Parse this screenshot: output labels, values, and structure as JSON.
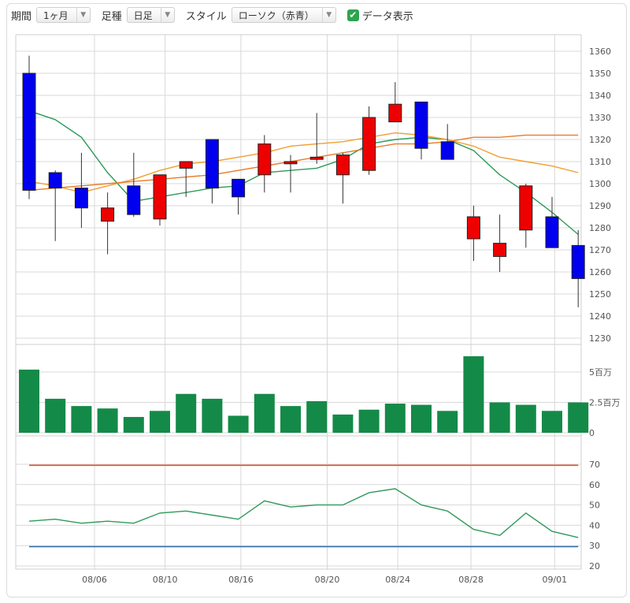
{
  "toolbar": {
    "period_label": "期間",
    "period_value": "1ヶ月",
    "foot_label": "足種",
    "foot_value": "日足",
    "style_label": "スタイル",
    "style_value": "ローソク（赤青）",
    "data_toggle_label": "データ表示",
    "data_toggle_checked": true
  },
  "colors": {
    "up": "#ee0000",
    "down": "#0000ee",
    "volume": "#148a48",
    "ma_short": "#2e9a5a",
    "ma_long": "#f0a030",
    "ma_mid": "#e87a2a",
    "rsi_line": "#2e9a5a",
    "rsi_upper": "#e8502a",
    "rsi_lower": "#2a6aa8",
    "grid": "#d8d8d8"
  },
  "chart_data": [
    {
      "type": "candlestick",
      "y_ticks": [
        "1360",
        "1350",
        "1340",
        "1330",
        "1320",
        "1310",
        "1300",
        "1290",
        "1280",
        "1270",
        "1260",
        "1250",
        "1240",
        "1230"
      ],
      "ylim": [
        1230,
        1360
      ],
      "x_ticks": [
        {
          "index": 2.5,
          "label": "08/06"
        },
        {
          "index": 5.2,
          "label": "08/10"
        },
        {
          "index": 8.1,
          "label": "08/16"
        },
        {
          "index": 11.4,
          "label": "08/20"
        },
        {
          "index": 14.1,
          "label": "08/24"
        },
        {
          "index": 16.9,
          "label": "08/28"
        },
        {
          "index": 20.1,
          "label": "09/01"
        }
      ],
      "candles": [
        {
          "o": 1350,
          "h": 1358,
          "l": 1293,
          "c": 1297
        },
        {
          "o": 1305,
          "h": 1306,
          "l": 1274,
          "c": 1298
        },
        {
          "o": 1298,
          "h": 1314,
          "l": 1280,
          "c": 1289
        },
        {
          "o": 1283,
          "h": 1296,
          "l": 1268,
          "c": 1289
        },
        {
          "o": 1299,
          "h": 1314,
          "l": 1285,
          "c": 1286
        },
        {
          "o": 1284,
          "h": 1304,
          "l": 1281,
          "c": 1304
        },
        {
          "o": 1307,
          "h": 1310,
          "l": 1294,
          "c": 1310
        },
        {
          "o": 1320,
          "h": 1320,
          "l": 1291,
          "c": 1298
        },
        {
          "o": 1302,
          "h": 1302,
          "l": 1286,
          "c": 1294
        },
        {
          "o": 1304,
          "h": 1322,
          "l": 1296,
          "c": 1318
        },
        {
          "o": 1309,
          "h": 1313,
          "l": 1296,
          "c": 1310
        },
        {
          "o": 1311,
          "h": 1332,
          "l": 1309,
          "c": 1312
        },
        {
          "o": 1304,
          "h": 1314,
          "l": 1291,
          "c": 1313
        },
        {
          "o": 1306,
          "h": 1335,
          "l": 1304,
          "c": 1330
        },
        {
          "o": 1328,
          "h": 1346,
          "l": 1328,
          "c": 1336
        },
        {
          "o": 1337,
          "h": 1337,
          "l": 1311,
          "c": 1316
        },
        {
          "o": 1319,
          "h": 1327,
          "l": 1311,
          "c": 1311
        },
        {
          "o": 1275,
          "h": 1290,
          "l": 1265,
          "c": 1285
        },
        {
          "o": 1267,
          "h": 1286,
          "l": 1260,
          "c": 1273
        },
        {
          "o": 1279,
          "h": 1300,
          "l": 1271,
          "c": 1299
        },
        {
          "o": 1285,
          "h": 1294,
          "l": 1271,
          "c": 1271
        },
        {
          "o": 1272,
          "h": 1279,
          "l": 1244,
          "c": 1257
        }
      ],
      "ma_lines": [
        {
          "key": "ma_short",
          "values": [
            1333,
            1329,
            1321,
            1305,
            1292,
            1294,
            1296,
            1298,
            1299,
            1305,
            1306,
            1307,
            1311,
            1318,
            1320,
            1321,
            1320,
            1315,
            1304,
            1296,
            1287,
            1277
          ]
        },
        {
          "key": "ma_long",
          "values": [
            1301,
            1299,
            1296,
            1299,
            1302,
            1306,
            1309,
            1310,
            1312,
            1314,
            1317,
            1318,
            1319,
            1321,
            1323,
            1322,
            1320,
            1317,
            1312,
            1310,
            1308,
            1305
          ]
        },
        {
          "key": "ma_mid",
          "values": [
            1297,
            1298,
            1299,
            1300,
            1301,
            1302,
            1303,
            1304,
            1306,
            1308,
            1310,
            1312,
            1314,
            1316,
            1318,
            1318,
            1319,
            1321,
            1321,
            1322,
            1322,
            1322
          ]
        }
      ]
    },
    {
      "type": "bar",
      "y_ticks": [
        "5百万",
        "2.5百万",
        "0"
      ],
      "ylim": [
        0,
        8
      ],
      "values": [
        5.2,
        2.8,
        2.2,
        2.0,
        1.3,
        1.8,
        3.2,
        2.8,
        1.4,
        3.2,
        2.2,
        2.6,
        1.5,
        1.9,
        2.4,
        2.3,
        1.8,
        6.3,
        2.5,
        2.3,
        1.8,
        2.5
      ]
    },
    {
      "type": "line",
      "y_ticks": [
        "70",
        "60",
        "50",
        "40",
        "30",
        "20"
      ],
      "ylim": [
        20,
        75
      ],
      "upper": 69.5,
      "lower": 29.5,
      "values": [
        42,
        43,
        41,
        42,
        41,
        46,
        47,
        45,
        43,
        52,
        49,
        50,
        50,
        56,
        58,
        50,
        47,
        38,
        35,
        46,
        37,
        34
      ]
    }
  ]
}
